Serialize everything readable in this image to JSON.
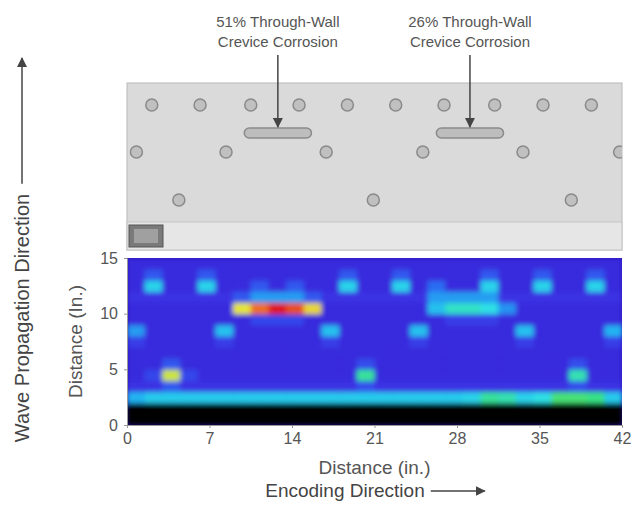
{
  "chart_data": {
    "type": "heatmap",
    "xlabel": "Distance (in.)",
    "ylabel": "Distance (In.)",
    "direction_labels": {
      "propagation": "Wave Propagation Direction",
      "encoding": "Encoding Direction"
    },
    "annotations": [
      [
        "51% Through-Wall",
        "Crevice Corrosion"
      ],
      [
        "26% Through-Wall",
        "Crevice Corrosion"
      ]
    ],
    "xlim": [
      0,
      42
    ],
    "xticks": [
      0,
      7,
      14,
      21,
      28,
      35,
      42
    ],
    "ylim": [
      0,
      15
    ],
    "yticks": [
      0,
      5,
      10,
      15
    ],
    "grid": false,
    "zlim": [
      0,
      100
    ],
    "xbins": [
      0,
      1.5,
      3,
      4.5,
      6,
      7.5,
      9,
      10.5,
      12,
      13.5,
      15,
      16.5,
      18,
      19.5,
      21,
      22.5,
      24,
      25.5,
      27,
      28.5,
      30,
      31.5,
      33,
      34.5,
      36,
      37.5,
      39,
      40.5,
      42
    ],
    "ybins": [
      0,
      1,
      2,
      3,
      4,
      5,
      6,
      7,
      8,
      9,
      10,
      11,
      12,
      13,
      14,
      15
    ],
    "z": [
      [
        null,
        null,
        null,
        null,
        null,
        null,
        null,
        null,
        null,
        null,
        null,
        null,
        null,
        null,
        null,
        null,
        null,
        null,
        null,
        null,
        null,
        null,
        null,
        null,
        null,
        null,
        null,
        null
      ],
      [
        null,
        null,
        null,
        null,
        null,
        null,
        null,
        null,
        null,
        null,
        null,
        null,
        null,
        null,
        null,
        null,
        null,
        null,
        null,
        null,
        null,
        null,
        null,
        null,
        null,
        null,
        null,
        null
      ],
      [
        45,
        50,
        50,
        50,
        50,
        50,
        50,
        50,
        50,
        50,
        50,
        50,
        50,
        50,
        50,
        50,
        50,
        50,
        50,
        52,
        62,
        60,
        52,
        55,
        66,
        66,
        64,
        50
      ],
      [
        14,
        14,
        25,
        14,
        14,
        14,
        14,
        14,
        14,
        14,
        14,
        14,
        14,
        22,
        14,
        14,
        14,
        14,
        14,
        14,
        14,
        14,
        14,
        14,
        14,
        22,
        14,
        14
      ],
      [
        12,
        20,
        76,
        20,
        12,
        12,
        12,
        12,
        12,
        12,
        12,
        12,
        12,
        62,
        12,
        12,
        12,
        12,
        12,
        12,
        12,
        12,
        12,
        12,
        12,
        60,
        12,
        12
      ],
      [
        12,
        12,
        25,
        12,
        12,
        12,
        12,
        12,
        12,
        12,
        12,
        12,
        12,
        22,
        12,
        12,
        12,
        12,
        12,
        12,
        12,
        12,
        12,
        12,
        12,
        22,
        12,
        12
      ],
      [
        12,
        12,
        12,
        12,
        12,
        12,
        12,
        12,
        12,
        12,
        12,
        12,
        12,
        12,
        12,
        12,
        12,
        12,
        12,
        12,
        12,
        12,
        12,
        12,
        12,
        12,
        12,
        12
      ],
      [
        18,
        12,
        12,
        12,
        12,
        18,
        12,
        12,
        12,
        12,
        12,
        18,
        12,
        12,
        12,
        12,
        18,
        12,
        12,
        12,
        12,
        12,
        18,
        12,
        12,
        12,
        12,
        18
      ],
      [
        40,
        12,
        12,
        12,
        12,
        48,
        12,
        12,
        12,
        12,
        12,
        48,
        12,
        12,
        12,
        12,
        48,
        12,
        12,
        12,
        12,
        12,
        48,
        12,
        12,
        12,
        12,
        45
      ],
      [
        12,
        12,
        12,
        12,
        12,
        12,
        12,
        20,
        20,
        20,
        12,
        12,
        12,
        12,
        12,
        12,
        12,
        12,
        18,
        18,
        18,
        12,
        12,
        12,
        12,
        12,
        12,
        12
      ],
      [
        12,
        12,
        12,
        12,
        12,
        12,
        78,
        92,
        100,
        95,
        80,
        12,
        12,
        12,
        12,
        12,
        12,
        48,
        58,
        58,
        55,
        38,
        12,
        12,
        12,
        12,
        12,
        12
      ],
      [
        14,
        14,
        14,
        14,
        14,
        14,
        25,
        40,
        40,
        40,
        25,
        14,
        14,
        14,
        14,
        14,
        14,
        40,
        40,
        40,
        40,
        14,
        14,
        14,
        14,
        14,
        14,
        14
      ],
      [
        12,
        52,
        12,
        12,
        52,
        12,
        12,
        25,
        12,
        25,
        12,
        12,
        52,
        12,
        12,
        52,
        12,
        30,
        12,
        12,
        52,
        12,
        12,
        52,
        12,
        12,
        52,
        12
      ],
      [
        12,
        25,
        12,
        12,
        25,
        12,
        12,
        12,
        12,
        12,
        12,
        12,
        25,
        12,
        12,
        25,
        12,
        12,
        12,
        12,
        25,
        12,
        12,
        25,
        12,
        12,
        25,
        12
      ],
      [
        12,
        12,
        12,
        12,
        12,
        12,
        12,
        12,
        12,
        12,
        12,
        12,
        12,
        12,
        12,
        12,
        12,
        12,
        12,
        12,
        12,
        12,
        12,
        12,
        12,
        12,
        12,
        12
      ]
    ]
  }
}
